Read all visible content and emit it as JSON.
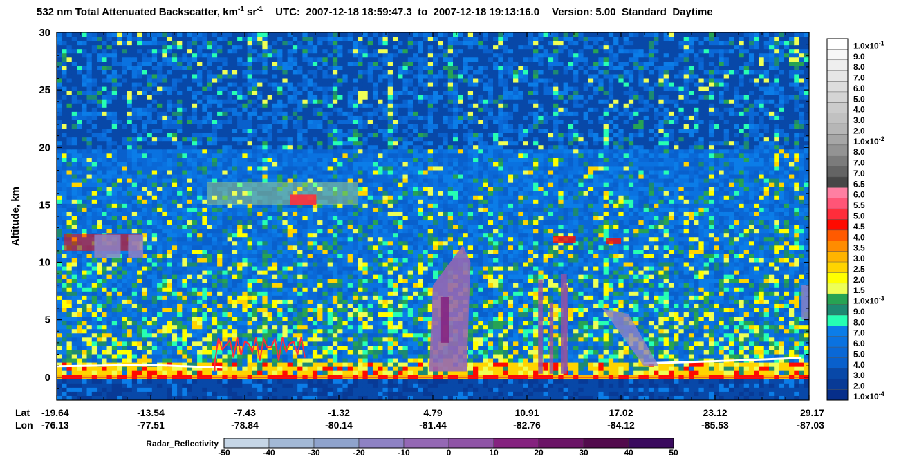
{
  "title": {
    "quantity": "532 nm Total Attenuated Backscatter, km",
    "unit_exp1": "-1",
    "unit_mid": " sr",
    "unit_exp2": "-1",
    "utc_prefix": "UTC:",
    "utc_start": "2007-12-18 18:59:47.3",
    "utc_to": "to",
    "utc_end": "2007-12-18 19:13:16.0",
    "version_label": "Version: 5.00",
    "product": "Standard",
    "daytime": "Daytime"
  },
  "chart_data": {
    "type": "heatmap",
    "title": "532 nm Total Attenuated Backscatter, km-1 sr-1",
    "ylabel": "Altitude, km",
    "ylim": [
      -2,
      30
    ],
    "y_ticks": [
      0,
      5,
      10,
      15,
      20,
      25,
      30
    ],
    "y_tick_labels": [
      "0",
      "5",
      "10",
      "15",
      "20",
      "25",
      "30"
    ],
    "x_axis": {
      "rows": [
        "Lat",
        "Lon"
      ],
      "ticks": [
        {
          "lat": "-19.64",
          "lon": "-76.13"
        },
        {
          "lat": "-13.54",
          "lon": "-77.51"
        },
        {
          "lat": "-7.43",
          "lon": "-78.84"
        },
        {
          "lat": "-1.32",
          "lon": "-80.14"
        },
        {
          "lat": "4.79",
          "lon": "-81.44"
        },
        {
          "lat": "10.91",
          "lon": "-82.76"
        },
        {
          "lat": "17.02",
          "lon": "-84.12"
        },
        {
          "lat": "23.12",
          "lon": "-85.53"
        },
        {
          "lat": "29.17",
          "lon": "-87.03"
        }
      ]
    },
    "colorbar": {
      "levels": [
        {
          "label": "1.0x10",
          "exp": "-1",
          "color": "#ffffff"
        },
        {
          "label": "9.0",
          "color": "#f7f7f7"
        },
        {
          "label": "8.0",
          "color": "#efefef"
        },
        {
          "label": "7.0",
          "color": "#e6e6e6"
        },
        {
          "label": "6.0",
          "color": "#dddddd"
        },
        {
          "label": "5.0",
          "color": "#d4d4d4"
        },
        {
          "label": "4.0",
          "color": "#cbcbcb"
        },
        {
          "label": "3.0",
          "color": "#c1c1c1"
        },
        {
          "label": "2.0",
          "color": "#b6b6b6"
        },
        {
          "label": "1.0x10",
          "exp": "-2",
          "color": "#a6a6a6"
        },
        {
          "label": "8.0",
          "color": "#939393"
        },
        {
          "label": "7.0",
          "color": "#7b7b7b"
        },
        {
          "label": "7.0",
          "color": "#646464"
        },
        {
          "label": "6.5",
          "color": "#474747"
        },
        {
          "label": "6.0",
          "color": "#ff7fa2"
        },
        {
          "label": "5.5",
          "color": "#ff5577"
        },
        {
          "label": "5.0",
          "color": "#ff2d3b"
        },
        {
          "label": "4.5",
          "color": "#ff0a00"
        },
        {
          "label": "4.0",
          "color": "#ff5a00"
        },
        {
          "label": "3.5",
          "color": "#ff8c00"
        },
        {
          "label": "3.0",
          "color": "#ffb400"
        },
        {
          "label": "2.5",
          "color": "#ffd400"
        },
        {
          "label": "2.0",
          "color": "#ffff00"
        },
        {
          "label": "1.5",
          "color": "#eeff55"
        },
        {
          "label": "1.0x10",
          "exp": "-3",
          "color": "#27a353"
        },
        {
          "label": "9.0",
          "color": "#1d8a72"
        },
        {
          "label": "8.0",
          "color": "#26ffb3"
        },
        {
          "label": "7.0",
          "color": "#0b7de8"
        },
        {
          "label": "6.0",
          "color": "#0a72e0"
        },
        {
          "label": "5.0",
          "color": "#0a68d6"
        },
        {
          "label": "4.0",
          "color": "#0960cc"
        },
        {
          "label": "3.0",
          "color": "#0848a8"
        },
        {
          "label": "2.0",
          "color": "#083a96"
        },
        {
          "label": "1.0x10",
          "exp": "-4",
          "color": "#062e8a"
        }
      ]
    },
    "radar": {
      "name": "Radar_Reflectivity",
      "ticks": [
        "-50",
        "-40",
        "-30",
        "-20",
        "-10",
        "0",
        "10",
        "20",
        "30",
        "40",
        "50"
      ],
      "colors": [
        "#c6d6e6",
        "#a3b9d6",
        "#8fa3cc",
        "#8e82c4",
        "#9468b4",
        "#8f54a6",
        "#85227f",
        "#6b1466",
        "#520a4c",
        "#3a0a5e",
        "#3c0b8a"
      ]
    },
    "features": {
      "surface_altitude_km": 0,
      "boundary_layer_top_km": 1.2,
      "cirrus_layers_km": [
        {
          "lat_from": "-19.64",
          "lat_to": "-13.54",
          "base": 11,
          "top": 12.5
        },
        {
          "lat_from": "-7.43",
          "lat_to": "-1.32",
          "base": 15,
          "top": 17
        }
      ],
      "convective_column": {
        "lat": "4.79",
        "base": 0.5,
        "top": 11.5
      }
    }
  }
}
